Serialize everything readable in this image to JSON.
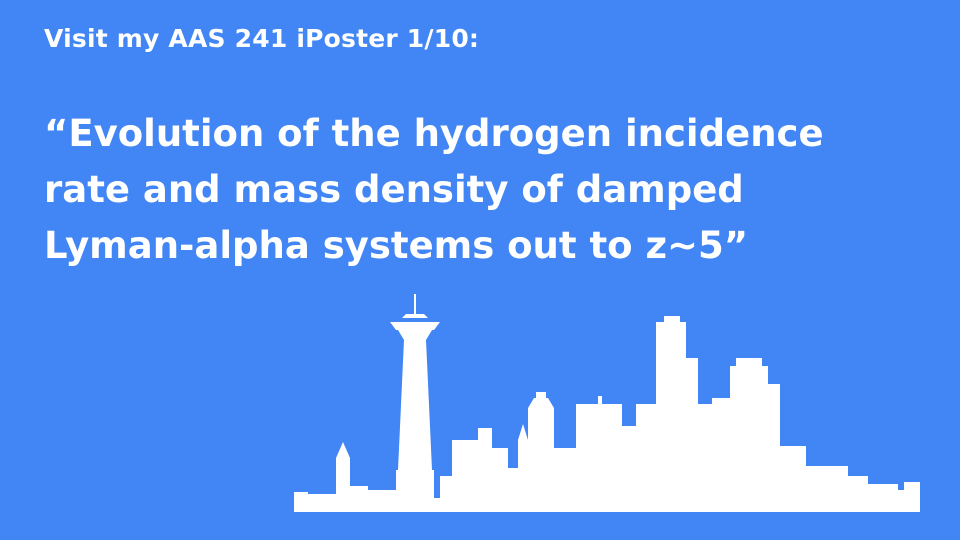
{
  "slide": {
    "subtitle": "Visit my AAS 241 iPoster 1/10:",
    "title_lines": [
      "“Evolution of the hydrogen incidence",
      "rate and mass density of damped",
      "Lyman-alpha systems out to z~5”"
    ]
  },
  "colors": {
    "background": "#4285f4",
    "text": "#ffffff",
    "skyline": "#ffffff"
  },
  "icons": {
    "skyline": "seattle-skyline-icon"
  }
}
